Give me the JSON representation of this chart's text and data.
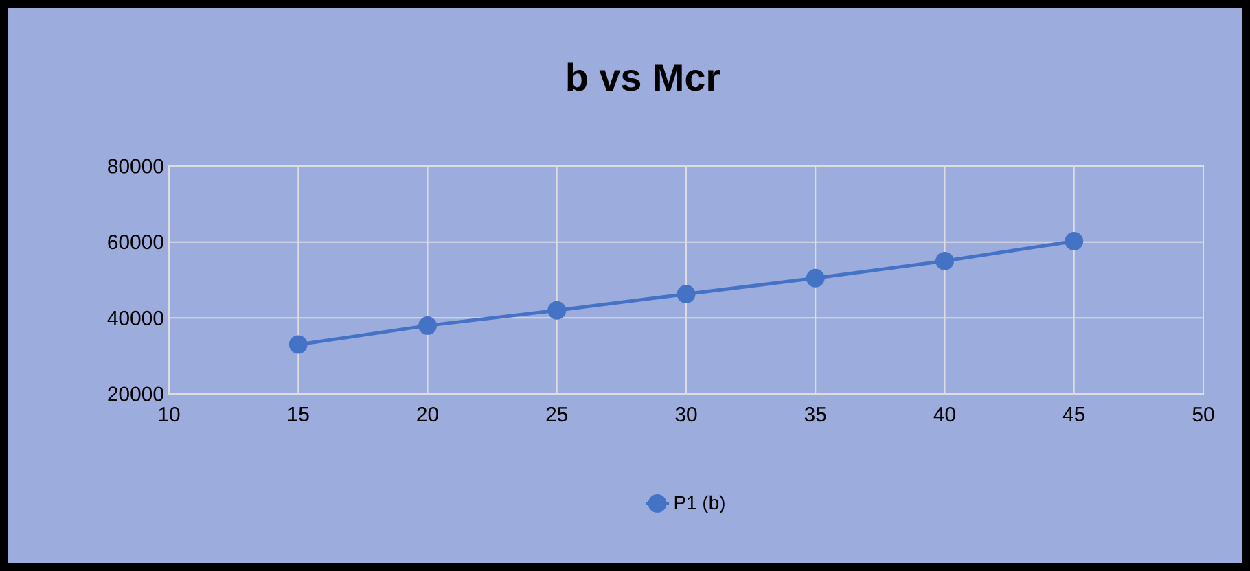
{
  "chart_data": {
    "type": "line",
    "title": "b vs Mcr",
    "x": [
      15,
      20,
      25,
      30,
      35,
      40,
      45
    ],
    "series": [
      {
        "name": "P1 (b)",
        "color": "#4472c4",
        "values": [
          33000,
          38000,
          42000,
          46300,
          50500,
          55000,
          60200
        ]
      }
    ],
    "xlim": [
      10,
      50
    ],
    "xticks": [
      10,
      15,
      20,
      25,
      30,
      35,
      40,
      45,
      50
    ],
    "ylim": [
      20000,
      80000
    ],
    "yticks": [
      20000,
      40000,
      60000,
      80000
    ],
    "grid": true,
    "legend": "bottom",
    "marker": "circle",
    "line_style": "solid"
  }
}
